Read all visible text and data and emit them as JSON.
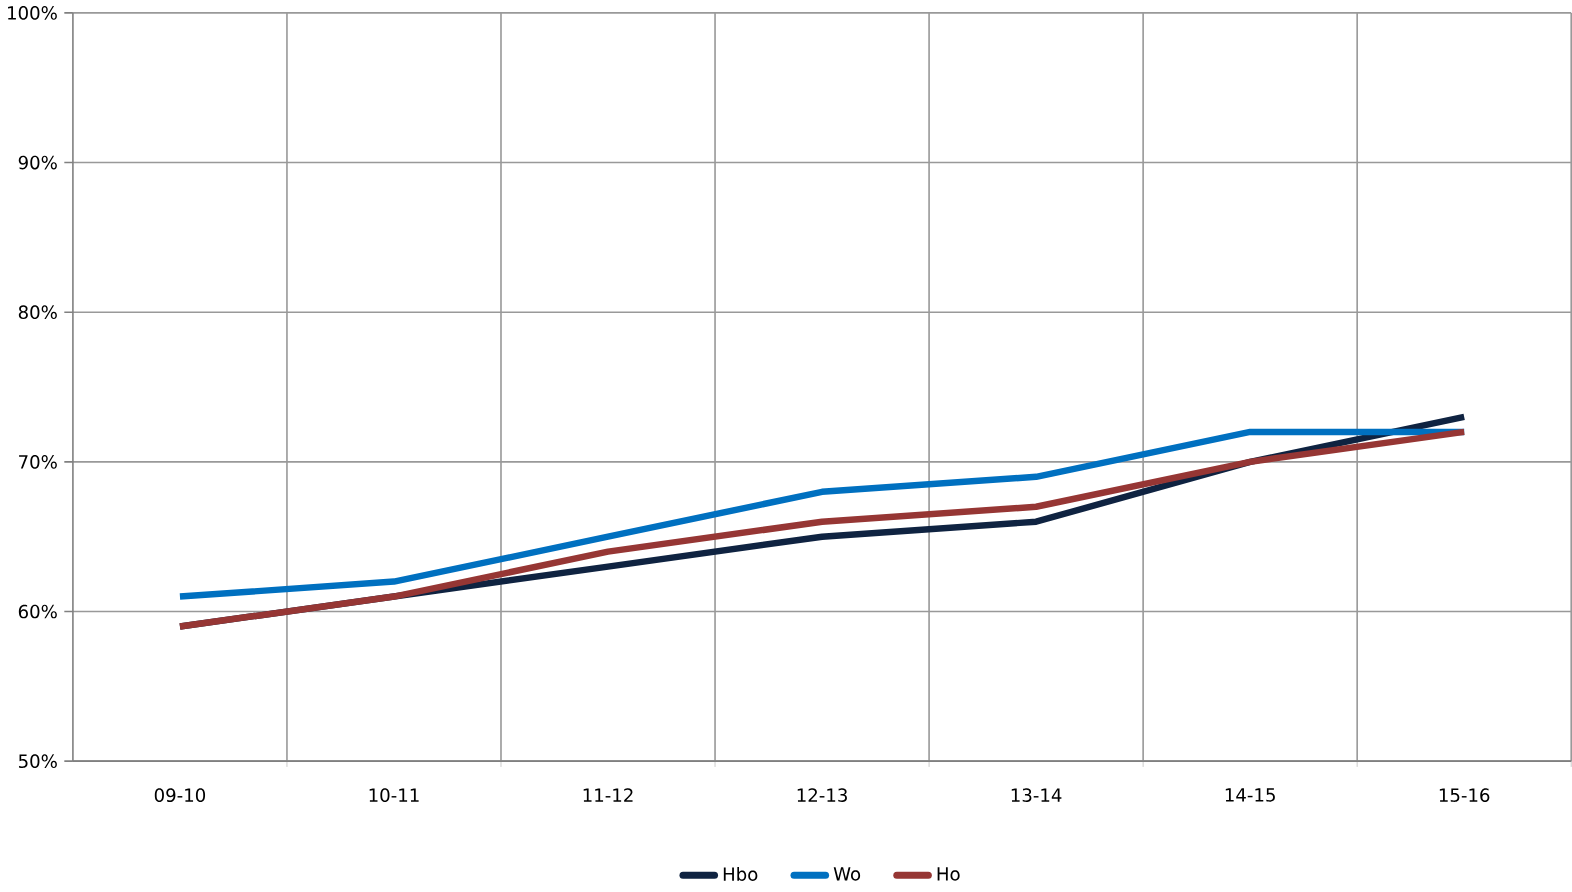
{
  "chart_data": {
    "type": "line",
    "categories": [
      "09-10",
      "10-11",
      "11-12",
      "12-13",
      "13-14",
      "14-15",
      "15-16"
    ],
    "series": [
      {
        "name": "Hbo",
        "color": "#0f2341",
        "values": [
          59,
          61,
          63,
          65,
          66,
          70,
          73
        ]
      },
      {
        "name": "Wo",
        "color": "#0070c0",
        "values": [
          61,
          62,
          65,
          68,
          69,
          72,
          72
        ]
      },
      {
        "name": "Ho",
        "color": "#963634",
        "values": [
          59,
          61,
          64,
          66,
          67,
          70,
          72
        ]
      }
    ],
    "ylim": [
      50,
      100
    ],
    "yticks": [
      {
        "value": 50,
        "label": "50%"
      },
      {
        "value": 60,
        "label": "60%"
      },
      {
        "value": 70,
        "label": "70%"
      },
      {
        "value": 80,
        "label": "80%"
      },
      {
        "value": 90,
        "label": "90%"
      },
      {
        "value": 100,
        "label": "100%"
      }
    ],
    "grid": true,
    "legend": "bottom",
    "marker": "none",
    "line_style": "solid"
  }
}
